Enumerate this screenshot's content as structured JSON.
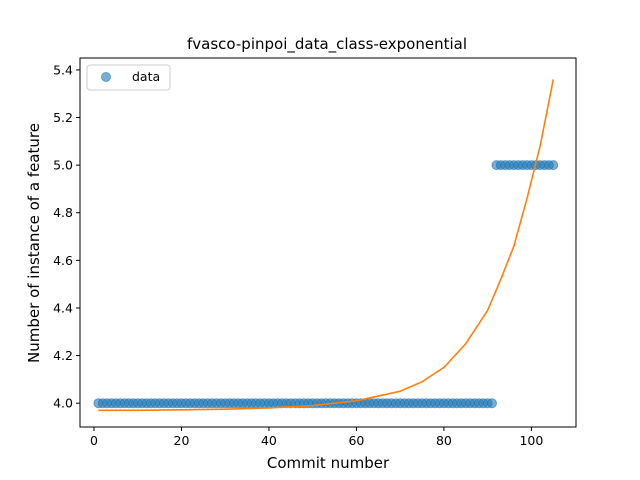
{
  "chart_data": {
    "type": "scatter",
    "title": "fvasco-pinpoi_data_class-exponential",
    "xlabel": "Commit number",
    "ylabel": "Number of instance of a feature",
    "xlim": [
      -3.2,
      110.2
    ],
    "ylim": [
      3.9,
      5.45
    ],
    "xticks": [
      0,
      20,
      40,
      60,
      80,
      100
    ],
    "yticks": [
      4.0,
      4.2,
      4.4,
      4.6,
      4.8,
      5.0,
      5.2,
      5.4
    ],
    "xtick_labels": [
      "0",
      "20",
      "40",
      "60",
      "80",
      "100"
    ],
    "ytick_labels": [
      "4.0",
      "4.2",
      "4.4",
      "4.6",
      "4.8",
      "5.0",
      "5.2",
      "5.4"
    ],
    "legend": {
      "position": "upper-left",
      "entries": [
        "data"
      ]
    },
    "grid": false,
    "series": [
      {
        "name": "data",
        "kind": "scatter",
        "color": "#1f77b4",
        "segments": [
          {
            "x_start": 1,
            "x_end": 91,
            "y": 4.0
          },
          {
            "x_start": 92,
            "x_end": 105,
            "y": 5.0
          }
        ]
      },
      {
        "kind": "line",
        "color": "#ff7f0e",
        "x": [
          1,
          10,
          20,
          30,
          40,
          50,
          60,
          70,
          75,
          80,
          85,
          90,
          93,
          96,
          99,
          102,
          105
        ],
        "y": [
          3.97,
          3.97,
          3.972,
          3.975,
          3.98,
          3.99,
          4.01,
          4.05,
          4.09,
          4.15,
          4.25,
          4.39,
          4.52,
          4.66,
          4.86,
          5.08,
          5.36
        ]
      }
    ]
  }
}
